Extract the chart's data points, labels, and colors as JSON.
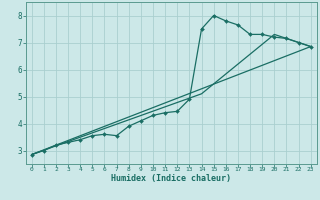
{
  "xlabel": "Humidex (Indice chaleur)",
  "bg_color": "#cce8e8",
  "grid_color": "#aacfcf",
  "line_color": "#1a6e64",
  "spine_color": "#5a9a90",
  "tick_color": "#1a6e64",
  "xlim": [
    -0.5,
    23.5
  ],
  "ylim": [
    2.5,
    8.5
  ],
  "yticks": [
    3,
    4,
    5,
    6,
    7,
    8
  ],
  "xticks": [
    0,
    1,
    2,
    3,
    4,
    5,
    6,
    7,
    8,
    9,
    10,
    11,
    12,
    13,
    14,
    15,
    16,
    17,
    18,
    19,
    20,
    21,
    22,
    23
  ],
  "series1_x": [
    0,
    1,
    2,
    3,
    4,
    5,
    6,
    7,
    8,
    9,
    10,
    11,
    12,
    13,
    14,
    15,
    16,
    17,
    18,
    19,
    20,
    21,
    22,
    23
  ],
  "series1_y": [
    2.85,
    3.0,
    3.2,
    3.3,
    3.4,
    3.55,
    3.6,
    3.55,
    3.9,
    4.1,
    4.3,
    4.4,
    4.45,
    4.9,
    7.5,
    8.0,
    7.8,
    7.65,
    7.3,
    7.3,
    7.2,
    7.15,
    7.0,
    6.85
  ],
  "series2_x": [
    0,
    14,
    20,
    23
  ],
  "series2_y": [
    2.85,
    5.1,
    7.3,
    6.85
  ],
  "series3_x": [
    0,
    23
  ],
  "series3_y": [
    2.85,
    6.85
  ]
}
